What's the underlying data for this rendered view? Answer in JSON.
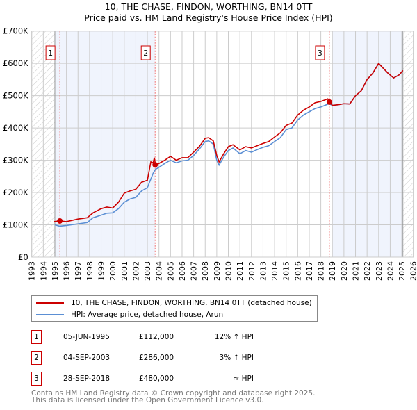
{
  "chart_data": {
    "type": "line",
    "title": "10, THE CHASE, FINDON, WORTHING, BN14 0TT",
    "subtitle": "Price paid vs. HM Land Registry's House Price Index (HPI)",
    "xlim": [
      1993,
      2026
    ],
    "ylim": [
      0,
      700000
    ],
    "y_ticks": [
      "£0",
      "£100K",
      "£200K",
      "£300K",
      "£400K",
      "£500K",
      "£600K",
      "£700K"
    ],
    "x_ticks": [
      "1993",
      "1994",
      "1995",
      "1996",
      "1997",
      "1998",
      "1999",
      "2000",
      "2001",
      "2002",
      "2003",
      "2004",
      "2005",
      "2006",
      "2007",
      "2008",
      "2009",
      "2010",
      "2011",
      "2012",
      "2013",
      "2014",
      "2015",
      "2016",
      "2017",
      "2018",
      "2019",
      "2020",
      "2021",
      "2022",
      "2023",
      "2024",
      "2025",
      "2026"
    ],
    "grid": true,
    "hatched_ranges": [
      [
        1993,
        1995
      ],
      [
        2025.1,
        2026
      ]
    ],
    "shaded_ranges": [
      [
        1995,
        2003.67
      ],
      [
        2019,
        2025.1
      ]
    ],
    "series": [
      {
        "name": "10, THE CHASE, FINDON, WORTHING, BN14 0TT (detached house)",
        "color": "#cc0000",
        "points": [
          [
            1994.9,
            110
          ],
          [
            1995.4,
            112
          ],
          [
            1996,
            110
          ],
          [
            1997,
            118
          ],
          [
            1997.8,
            122
          ],
          [
            1998.3,
            137
          ],
          [
            1999,
            150
          ],
          [
            1999.5,
            155
          ],
          [
            2000,
            152
          ],
          [
            2000.5,
            170
          ],
          [
            2001,
            198
          ],
          [
            2001.5,
            205
          ],
          [
            2002,
            210
          ],
          [
            2002.5,
            232
          ],
          [
            2003,
            238
          ],
          [
            2003.3,
            295
          ],
          [
            2003.5,
            292
          ],
          [
            2003.6,
            308
          ],
          [
            2003.7,
            286
          ],
          [
            2004,
            290
          ],
          [
            2004.5,
            300
          ],
          [
            2005,
            312
          ],
          [
            2005.5,
            300
          ],
          [
            2006,
            308
          ],
          [
            2006.5,
            308
          ],
          [
            2007,
            325
          ],
          [
            2007.5,
            343
          ],
          [
            2008,
            368
          ],
          [
            2008.3,
            370
          ],
          [
            2008.7,
            360
          ],
          [
            2009,
            315
          ],
          [
            2009.2,
            295
          ],
          [
            2009.6,
            320
          ],
          [
            2010,
            342
          ],
          [
            2010.4,
            348
          ],
          [
            2011,
            332
          ],
          [
            2011.5,
            342
          ],
          [
            2012,
            338
          ],
          [
            2012.5,
            345
          ],
          [
            2013,
            352
          ],
          [
            2013.5,
            358
          ],
          [
            2014,
            372
          ],
          [
            2014.5,
            385
          ],
          [
            2015,
            408
          ],
          [
            2015.5,
            415
          ],
          [
            2016,
            440
          ],
          [
            2016.5,
            455
          ],
          [
            2017,
            465
          ],
          [
            2017.5,
            478
          ],
          [
            2018,
            482
          ],
          [
            2018.6,
            490
          ],
          [
            2018.74,
            480
          ],
          [
            2019,
            470
          ],
          [
            2019.5,
            472
          ],
          [
            2020,
            475
          ],
          [
            2020.5,
            474
          ],
          [
            2021,
            500
          ],
          [
            2021.5,
            515
          ],
          [
            2022,
            550
          ],
          [
            2022.5,
            570
          ],
          [
            2023,
            600
          ],
          [
            2023.4,
            585
          ],
          [
            2023.8,
            570
          ],
          [
            2024.3,
            555
          ],
          [
            2024.8,
            565
          ],
          [
            2025.1,
            578
          ]
        ]
      },
      {
        "name": "HPI: Average price, detached house, Arun",
        "color": "#5b8fd4",
        "points": [
          [
            1995,
            100
          ],
          [
            1995.4,
            96
          ],
          [
            1996,
            98
          ],
          [
            1997,
            103
          ],
          [
            1997.8,
            107
          ],
          [
            1998.3,
            122
          ],
          [
            1999,
            130
          ],
          [
            1999.5,
            136
          ],
          [
            2000,
            137
          ],
          [
            2000.5,
            150
          ],
          [
            2001,
            170
          ],
          [
            2001.5,
            180
          ],
          [
            2002,
            185
          ],
          [
            2002.5,
            205
          ],
          [
            2003,
            215
          ],
          [
            2003.5,
            260
          ],
          [
            2003.7,
            272
          ],
          [
            2004,
            278
          ],
          [
            2004.5,
            290
          ],
          [
            2005,
            300
          ],
          [
            2005.5,
            292
          ],
          [
            2006,
            298
          ],
          [
            2006.5,
            300
          ],
          [
            2007,
            315
          ],
          [
            2007.5,
            335
          ],
          [
            2008,
            358
          ],
          [
            2008.3,
            360
          ],
          [
            2008.7,
            350
          ],
          [
            2009,
            300
          ],
          [
            2009.2,
            285
          ],
          [
            2009.6,
            310
          ],
          [
            2010,
            330
          ],
          [
            2010.4,
            338
          ],
          [
            2011,
            320
          ],
          [
            2011.5,
            330
          ],
          [
            2012,
            325
          ],
          [
            2012.5,
            333
          ],
          [
            2013,
            340
          ],
          [
            2013.5,
            345
          ],
          [
            2014,
            358
          ],
          [
            2014.5,
            370
          ],
          [
            2015,
            395
          ],
          [
            2015.5,
            400
          ],
          [
            2016,
            425
          ],
          [
            2016.5,
            440
          ],
          [
            2017,
            450
          ],
          [
            2017.5,
            460
          ],
          [
            2018,
            465
          ],
          [
            2018.7,
            475
          ],
          [
            2019,
            470
          ],
          [
            2019.5,
            472
          ],
          [
            2020,
            475
          ],
          [
            2020.5,
            474
          ],
          [
            2021,
            500
          ],
          [
            2021.5,
            515
          ],
          [
            2022,
            550
          ],
          [
            2022.5,
            570
          ],
          [
            2023,
            600
          ],
          [
            2023.4,
            585
          ],
          [
            2023.8,
            570
          ],
          [
            2024.3,
            555
          ],
          [
            2024.8,
            565
          ],
          [
            2025.1,
            578
          ]
        ]
      }
    ],
    "sales": [
      {
        "label": "1",
        "date": "05-JUN-1995",
        "x": 1995.43,
        "price": "£112,000",
        "value": 112,
        "vs_hpi": "12% ↑ HPI"
      },
      {
        "label": "2",
        "date": "04-SEP-2003",
        "x": 2003.67,
        "price": "£286,000",
        "value": 286,
        "vs_hpi": "3% ↑ HPI"
      },
      {
        "label": "3",
        "date": "28-SEP-2018",
        "x": 2018.74,
        "price": "£480,000",
        "value": 480,
        "vs_hpi": "≈ HPI"
      }
    ]
  },
  "footer": {
    "line1": "Contains HM Land Registry data © Crown copyright and database right 2025.",
    "line2": "This data is licensed under the Open Government Licence v3.0."
  }
}
